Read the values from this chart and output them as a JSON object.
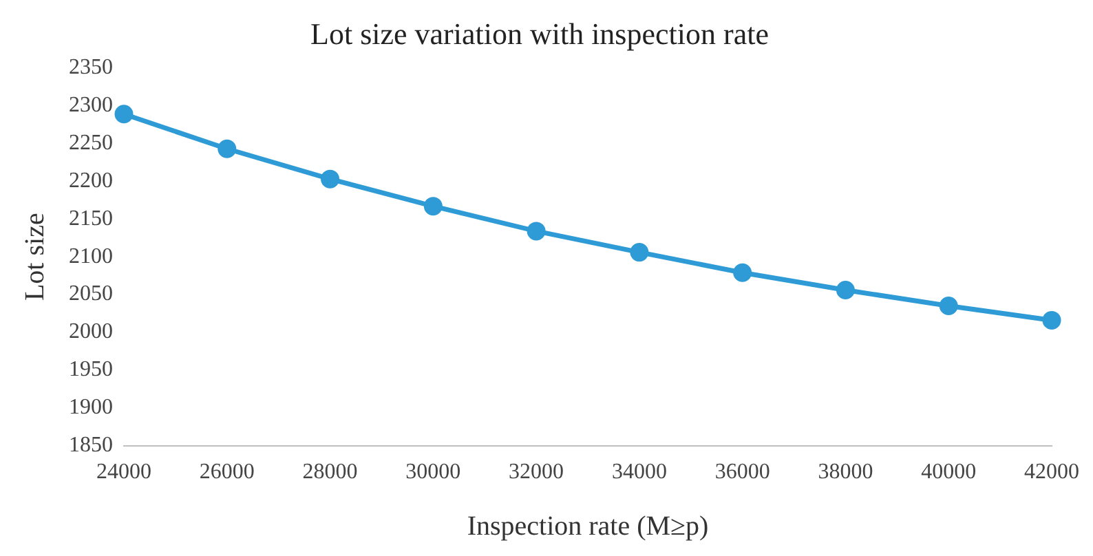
{
  "chart_data": {
    "type": "line",
    "title": "Lot size variation with inspection rate",
    "xlabel": "Inspection rate (M≥p)",
    "ylabel": "Lot size",
    "categories": [
      "24000",
      "26000",
      "28000",
      "30000",
      "32000",
      "34000",
      "36000",
      "38000",
      "40000",
      "42000"
    ],
    "series": [
      {
        "color": "#2e9bd6",
        "values": [
          2289,
          2243,
          2203,
          2167,
          2134,
          2106,
          2079,
          2056,
          2035,
          2016
        ]
      }
    ],
    "ylim": [
      1850,
      2350
    ],
    "yticks": [
      1850,
      1900,
      1950,
      2000,
      2050,
      2100,
      2150,
      2200,
      2250,
      2300,
      2350
    ],
    "grid": false,
    "legend": false,
    "marker": "circle",
    "line_style": "solid"
  }
}
